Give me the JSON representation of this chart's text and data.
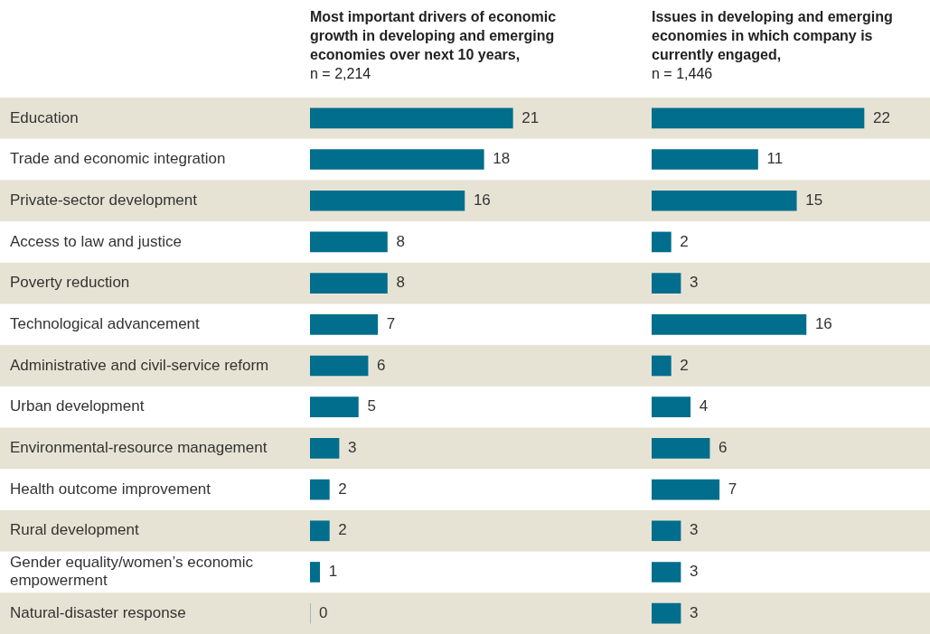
{
  "chart_data": [
    {
      "type": "bar",
      "orientation": "horizontal",
      "title": "Most important drivers of economic growth in developing and emerging economies over next 10 years,",
      "subtitle": "n = 2,214",
      "categories": [
        "Education",
        "Trade and economic integration",
        "Private-sector development",
        "Access to law and justice",
        "Poverty reduction",
        "Technological advancement",
        "Administrative and civil-service reform",
        "Urban development",
        "Environmental-resource management",
        "Health outcome improvement",
        "Rural development",
        "Gender equality/women’s economic empowerment",
        "Natural-disaster response"
      ],
      "values": [
        21,
        18,
        16,
        8,
        8,
        7,
        6,
        5,
        3,
        2,
        2,
        1,
        0
      ],
      "color": "#006e8c",
      "data_labels": true,
      "tick_labels": "y"
    },
    {
      "type": "bar",
      "orientation": "horizontal",
      "title": "Issues in developing and emerging economies in which company is currently engaged,",
      "subtitle": "n = 1,446",
      "categories": [
        null,
        null,
        null,
        null,
        null,
        null,
        null,
        null,
        null,
        null,
        null,
        null,
        null
      ],
      "values": [
        22,
        11,
        15,
        2,
        3,
        16,
        2,
        4,
        6,
        7,
        3,
        3,
        3
      ],
      "color": "#006e8c",
      "data_labels": true,
      "tick_labels": false
    }
  ]
}
